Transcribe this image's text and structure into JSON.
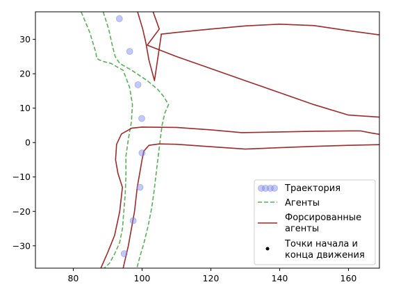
{
  "chart_data": {
    "type": "line",
    "title": "",
    "xlabel": "",
    "ylabel": "",
    "xlim": [
      69,
      169
    ],
    "ylim": [
      -36.5,
      38
    ],
    "xticks": [
      80,
      100,
      120,
      140,
      160
    ],
    "yticks": [
      -30,
      -20,
      -10,
      0,
      10,
      20,
      30
    ],
    "xtick_labels": [
      "80",
      "100",
      "120",
      "140",
      "160"
    ],
    "ytick_labels": [
      "−30",
      "−20",
      "−10",
      "0",
      "10",
      "20",
      "30"
    ],
    "grid": false,
    "legend_position": "lower-right",
    "series": [
      {
        "name": "Траектория",
        "kind": "scatter",
        "color": "#7b84e8",
        "x": [
          93.4,
          96.4,
          98.8,
          99.9,
          100.0,
          99.4,
          97.4,
          94.8
        ],
        "y": [
          36.0,
          26.5,
          16.8,
          7.0,
          -3.0,
          -13.0,
          -22.7,
          -32.3
        ]
      },
      {
        "name": "Агенты",
        "kind": "dashed-line",
        "color": "#5bad5b",
        "lines": [
          {
            "x": [
              82.3,
              84.8,
              86.0,
              86.6,
              86.8,
              87.6,
              89.0,
              91.0,
              94.5,
              96.4,
              97.2,
              96.9,
              96.0,
              95.3,
              95.3,
              95.1,
              94.7,
              94.3,
              93.5,
              92.2,
              90.6,
              89.0
            ],
            "y": [
              38.0,
              32.0,
              28.0,
              26.0,
              24.5,
              24.0,
              23.5,
              23.0,
              21.0,
              16.0,
              11.0,
              6.0,
              1.0,
              -4.0,
              -10.0,
              -15.0,
              -20.0,
              -25.0,
              -29.0,
              -32.0,
              -35.0,
              -36.5
            ]
          },
          {
            "x": [
              88.7,
              90.3,
              91.4,
              92.2,
              93.5,
              97.0,
              101.5,
              104.5,
              106.2,
              107.7,
              106.6,
              105.8,
              105.3,
              104.7,
              104.1,
              103.5,
              102.8,
              101.8,
              100.6,
              99.4,
              98.5
            ],
            "y": [
              38.0,
              33.0,
              28.0,
              25.0,
              23.0,
              21.0,
              18.0,
              15.5,
              13.5,
              11.0,
              8.5,
              5.0,
              1.0,
              -4.0,
              -9.0,
              -14.0,
              -19.0,
              -24.0,
              -29.0,
              -33.0,
              -36.5
            ]
          }
        ]
      },
      {
        "name": "Форсированные агенты",
        "kind": "solid-line",
        "color": "#9b2a2a",
        "lines": [
          {
            "x": [
              98.7,
              100.2,
              101.1,
              102.0,
              103.6,
              105.6,
              105.5,
              110.0,
              120.0,
              130.0,
              140.0,
              150.0,
              160.0,
              169.0
            ],
            "y": [
              38.0,
              33.0,
              29.0,
              24.0,
              18.0,
              31.5,
              31.5,
              32.0,
              33.0,
              33.9,
              34.4,
              34.0,
              32.5,
              31.3
            ]
          },
          {
            "x": [
              103.2,
              105.0,
              101.5,
              101.5,
              110.0,
              120.0,
              130.0,
              140.0,
              150.0,
              160.0,
              169.0
            ],
            "y": [
              38.0,
              33.0,
              28.3,
              28.3,
              25.0,
              21.5,
              18.0,
              14.5,
              11.0,
              8.0,
              7.4
            ]
          },
          {
            "x": [
              88.0,
              90.0,
              92.0,
              93.5,
              94.3,
              93.0,
              92.3,
              92.6,
              94.0,
              97.0,
              100.0,
              110.0,
              120.0,
              129.0,
              140.0,
              150.0,
              160.0,
              163.5,
              166.5,
              169.0
            ],
            "y": [
              -36.5,
              -32.0,
              -27.0,
              -20.0,
              -13.0,
              -9.0,
              -5.0,
              -0.5,
              2.5,
              4.2,
              4.5,
              4.4,
              3.7,
              2.9,
              3.1,
              3.3,
              3.4,
              3.4,
              2.8,
              2.4
            ]
          },
          {
            "x": [
              94.5,
              96.0,
              97.8,
              98.6,
              99.3,
              100.0,
              100.5,
              102.0,
              105.0,
              110.0,
              120.0,
              130.0,
              140.0,
              150.0,
              160.0,
              169.0
            ],
            "y": [
              -36.5,
              -30.0,
              -20.0,
              -13.0,
              -9.0,
              -5.0,
              -2.5,
              -0.8,
              -0.4,
              -0.5,
              -1.2,
              -1.9,
              -1.5,
              -1.1,
              -0.8,
              -0.6
            ]
          }
        ]
      },
      {
        "name": "Точки начала и конца движения",
        "kind": "marker",
        "color": "#000000",
        "x": [],
        "y": []
      }
    ]
  },
  "legend": {
    "items": [
      {
        "label_lines": [
          "Траектория"
        ]
      },
      {
        "label_lines": [
          "Агенты"
        ]
      },
      {
        "label_lines": [
          "Форсированные",
          "агенты"
        ]
      },
      {
        "label_lines": [
          "Точки начала и",
          "конца движения"
        ]
      }
    ]
  }
}
